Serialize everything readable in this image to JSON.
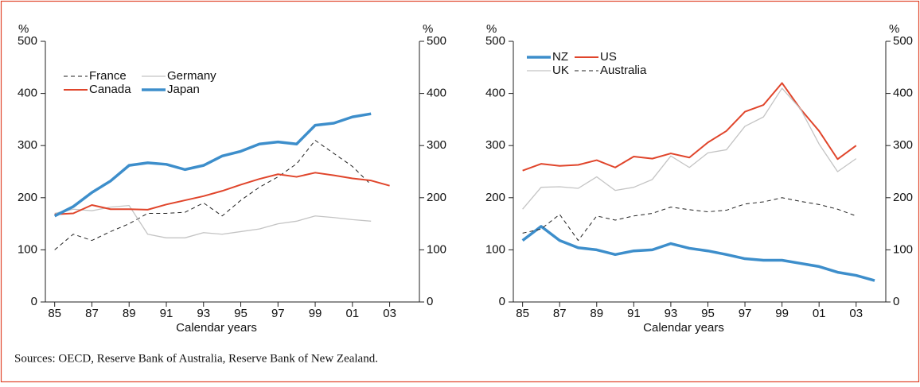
{
  "chart_data": [
    {
      "type": "line",
      "ylabel": "%",
      "y2label": "%",
      "xlabel": "Calendar years",
      "x": [
        1985,
        1986,
        1987,
        1988,
        1989,
        1990,
        1991,
        1992,
        1993,
        1994,
        1995,
        1996,
        1997,
        1998,
        1999,
        2000,
        2001,
        2002,
        2003,
        2004
      ],
      "xlim": [
        1984.5,
        2004.6
      ],
      "xticks": [
        {
          "value": 1985,
          "label": "85"
        },
        {
          "value": 1987,
          "label": "87"
        },
        {
          "value": 1989,
          "label": "89"
        },
        {
          "value": 1991,
          "label": "91"
        },
        {
          "value": 1993,
          "label": "93"
        },
        {
          "value": 1995,
          "label": "95"
        },
        {
          "value": 1997,
          "label": "97"
        },
        {
          "value": 1999,
          "label": "99"
        },
        {
          "value": 2001,
          "label": "01"
        },
        {
          "value": 2003,
          "label": "03"
        }
      ],
      "ylim": [
        0,
        500
      ],
      "yticks": [
        0,
        100,
        200,
        300,
        400,
        500
      ],
      "y2lim": [
        0,
        500
      ],
      "y2ticks": [
        0,
        100,
        200,
        300,
        400,
        500
      ],
      "legend": "upper left",
      "series": [
        {
          "name": "France",
          "color": "#222222",
          "style": "dashed",
          "linewidth": 1,
          "values": [
            100,
            130,
            118,
            135,
            150,
            170,
            170,
            172,
            190,
            165,
            195,
            220,
            240,
            265,
            310,
            285,
            260,
            225,
            null,
            null
          ]
        },
        {
          "name": "Germany",
          "color": "#c4c4c4",
          "style": "solid",
          "linewidth": 1.3,
          "values": [
            170,
            178,
            175,
            182,
            185,
            130,
            123,
            123,
            133,
            130,
            135,
            140,
            150,
            155,
            165,
            162,
            158,
            155,
            null,
            null
          ]
        },
        {
          "name": "Canada",
          "color": "#e0452b",
          "style": "solid",
          "linewidth": 2,
          "values": [
            168,
            170,
            186,
            178,
            178,
            177,
            187,
            195,
            203,
            213,
            225,
            236,
            245,
            240,
            248,
            243,
            237,
            233,
            223,
            null
          ]
        },
        {
          "name": "Japan",
          "color": "#3d8ecb",
          "style": "solid",
          "linewidth": 3.5,
          "values": [
            165,
            183,
            210,
            232,
            262,
            267,
            264,
            254,
            262,
            280,
            289,
            303,
            307,
            303,
            339,
            343,
            355,
            361,
            null,
            null
          ]
        }
      ]
    },
    {
      "type": "line",
      "ylabel": "%",
      "y2label": "%",
      "xlabel": "Calendar years",
      "x": [
        1985,
        1986,
        1987,
        1988,
        1989,
        1990,
        1991,
        1992,
        1993,
        1994,
        1995,
        1996,
        1997,
        1998,
        1999,
        2000,
        2001,
        2002,
        2003,
        2004
      ],
      "xlim": [
        1984.5,
        2004.6
      ],
      "xticks": [
        {
          "value": 1985,
          "label": "85"
        },
        {
          "value": 1987,
          "label": "87"
        },
        {
          "value": 1989,
          "label": "89"
        },
        {
          "value": 1991,
          "label": "91"
        },
        {
          "value": 1993,
          "label": "93"
        },
        {
          "value": 1995,
          "label": "95"
        },
        {
          "value": 1997,
          "label": "97"
        },
        {
          "value": 1999,
          "label": "99"
        },
        {
          "value": 2001,
          "label": "01"
        },
        {
          "value": 2003,
          "label": "03"
        }
      ],
      "ylim": [
        0,
        500
      ],
      "yticks": [
        0,
        100,
        200,
        300,
        400,
        500
      ],
      "y2lim": [
        0,
        500
      ],
      "y2ticks": [
        0,
        100,
        200,
        300,
        400,
        500
      ],
      "legend": "upper left",
      "series": [
        {
          "name": "NZ",
          "color": "#3d8ecb",
          "style": "solid",
          "linewidth": 3.5,
          "values": [
            118,
            145,
            118,
            104,
            100,
            91,
            98,
            100,
            112,
            103,
            98,
            91,
            83,
            80,
            80,
            74,
            68,
            57,
            51,
            41
          ]
        },
        {
          "name": "US",
          "color": "#e0452b",
          "style": "solid",
          "linewidth": 2,
          "values": [
            252,
            265,
            261,
            263,
            272,
            258,
            279,
            275,
            285,
            277,
            306,
            328,
            365,
            378,
            420,
            370,
            328,
            274,
            300,
            null
          ]
        },
        {
          "name": "UK",
          "color": "#c4c4c4",
          "style": "solid",
          "linewidth": 1.3,
          "values": [
            178,
            220,
            221,
            218,
            240,
            214,
            220,
            235,
            280,
            258,
            286,
            292,
            337,
            355,
            410,
            370,
            303,
            250,
            275,
            null
          ]
        },
        {
          "name": "Australia",
          "color": "#222222",
          "style": "dashed",
          "linewidth": 1,
          "values": [
            132,
            140,
            168,
            118,
            165,
            157,
            165,
            170,
            182,
            177,
            173,
            176,
            188,
            192,
            200,
            193,
            187,
            178,
            165,
            null
          ]
        }
      ]
    }
  ],
  "source": "Sources:  OECD, Reserve Bank of Australia, Reserve Bank of New Zealand."
}
